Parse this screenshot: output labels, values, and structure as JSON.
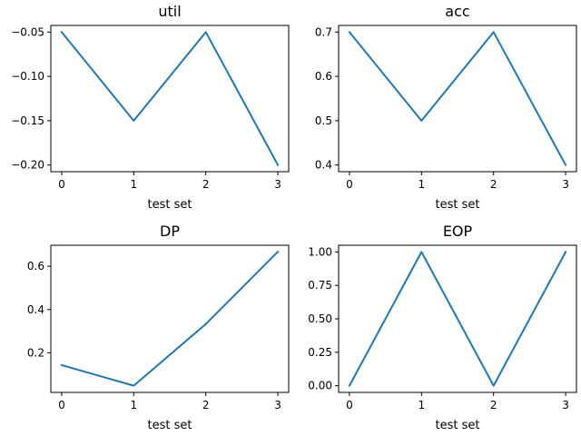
{
  "chart_data": [
    {
      "type": "line",
      "title": "util",
      "xlabel": "test set",
      "ylabel": "",
      "x": [
        0,
        1,
        2,
        3
      ],
      "series": [
        {
          "values": [
            -0.05,
            -0.15,
            -0.05,
            -0.2
          ]
        }
      ],
      "xlim": [
        -0.15,
        3.15
      ],
      "ylim": [
        -0.2075,
        -0.0425
      ],
      "xticks": [
        0,
        1,
        2,
        3
      ],
      "xtick_labels": [
        "0",
        "1",
        "2",
        "3"
      ],
      "yticks": [
        -0.05,
        -0.1,
        -0.15,
        -0.2
      ],
      "ytick_labels": [
        "−0.05",
        "−0.10",
        "−0.15",
        "−0.20"
      ],
      "color": "#1f77b4",
      "grid": false
    },
    {
      "type": "line",
      "title": "acc",
      "xlabel": "test set",
      "ylabel": "",
      "x": [
        0,
        1,
        2,
        3
      ],
      "series": [
        {
          "values": [
            0.7,
            0.5,
            0.7,
            0.4
          ]
        }
      ],
      "xlim": [
        -0.15,
        3.15
      ],
      "ylim": [
        0.385,
        0.715
      ],
      "xticks": [
        0,
        1,
        2,
        3
      ],
      "xtick_labels": [
        "0",
        "1",
        "2",
        "3"
      ],
      "yticks": [
        0.4,
        0.5,
        0.6,
        0.7
      ],
      "ytick_labels": [
        "0.4",
        "0.5",
        "0.6",
        "0.7"
      ],
      "color": "#1f77b4",
      "grid": false
    },
    {
      "type": "line",
      "title": "DP",
      "xlabel": "test set",
      "ylabel": "",
      "x": [
        0,
        1,
        2,
        3
      ],
      "series": [
        {
          "values": [
            0.143,
            0.048,
            0.333,
            0.667
          ]
        }
      ],
      "xlim": [
        -0.15,
        3.15
      ],
      "ylim": [
        0.017,
        0.697
      ],
      "xticks": [
        0,
        1,
        2,
        3
      ],
      "xtick_labels": [
        "0",
        "1",
        "2",
        "3"
      ],
      "yticks": [
        0.2,
        0.4,
        0.6
      ],
      "ytick_labels": [
        "0.2",
        "0.4",
        "0.6"
      ],
      "color": "#1f77b4",
      "grid": false
    },
    {
      "type": "line",
      "title": "EOP",
      "xlabel": "test set",
      "ylabel": "",
      "x": [
        0,
        1,
        2,
        3
      ],
      "series": [
        {
          "values": [
            0.0,
            1.0,
            0.0,
            1.0
          ]
        }
      ],
      "xlim": [
        -0.15,
        3.15
      ],
      "ylim": [
        -0.05,
        1.05
      ],
      "xticks": [
        0,
        1,
        2,
        3
      ],
      "xtick_labels": [
        "0",
        "1",
        "2",
        "3"
      ],
      "yticks": [
        0.0,
        0.25,
        0.5,
        0.75,
        1.0
      ],
      "ytick_labels": [
        "0.00",
        "0.25",
        "0.50",
        "0.75",
        "1.00"
      ],
      "color": "#1f77b4",
      "grid": false
    }
  ]
}
